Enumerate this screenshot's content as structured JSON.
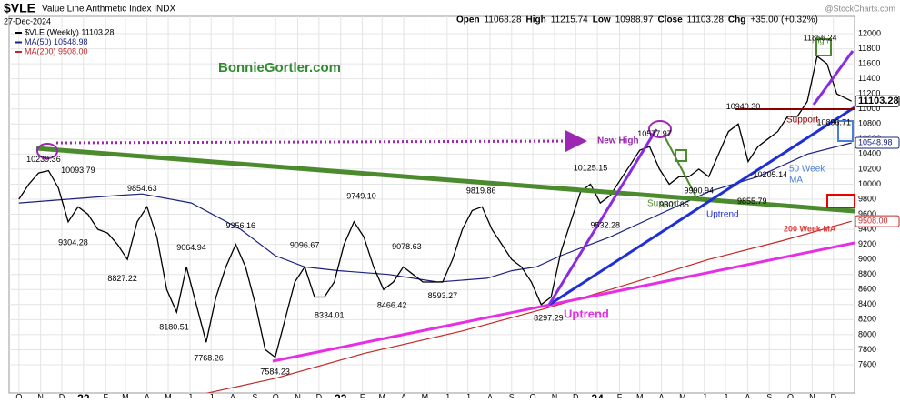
{
  "chart_data": {
    "type": "line",
    "symbol": "$VLE",
    "name": "Value Line Arithmetic Index INDX",
    "date": "27-Dec-2024",
    "watermark": "@StockCharts.com",
    "quote": [
      {
        "label": "Open",
        "value": 11068.28
      },
      {
        "label": "High",
        "value": 11215.74
      },
      {
        "label": "Low",
        "value": 10988.97
      },
      {
        "label": "Close",
        "value": 11103.28
      }
    ],
    "change_label": "Chg",
    "change": "+35.00 (+0.32%)",
    "x": [
      0,
      2,
      4,
      6,
      8,
      10,
      12,
      14,
      16,
      18,
      20,
      22,
      24,
      26,
      28,
      30,
      32,
      34,
      36,
      38,
      40,
      42,
      44,
      46,
      48,
      50,
      52,
      54,
      56,
      58,
      60,
      62,
      64,
      66,
      68,
      70,
      72,
      74,
      76,
      78,
      80,
      82,
      84,
      86,
      88,
      90,
      92,
      94,
      96,
      98,
      100,
      102,
      104,
      106,
      108,
      110,
      112,
      114,
      116,
      118,
      120,
      122,
      124,
      126,
      128,
      130,
      132,
      134,
      136,
      138,
      140,
      142,
      144,
      146,
      148,
      150,
      152,
      154,
      156,
      158,
      160,
      162,
      164,
      166,
      169
    ],
    "series": [
      {
        "name": "$VLE (Weekly) 11103.28",
        "color": "#000000",
        "values": [
          9800,
          10000,
          10150,
          10180,
          9950,
          9500,
          9700,
          9600,
          9400,
          9350,
          9200,
          9000,
          9500,
          9700,
          9300,
          8600,
          8300,
          8900,
          8400,
          7900,
          8500,
          8900,
          9200,
          8900,
          8400,
          7800,
          7700,
          8200,
          8700,
          8900,
          8500,
          8500,
          8700,
          9200,
          9500,
          9300,
          8900,
          8600,
          8700,
          8900,
          8800,
          8700,
          8700,
          8700,
          9000,
          9400,
          9650,
          9700,
          9400,
          9200,
          9000,
          8900,
          8700,
          8400,
          8500,
          9100,
          9500,
          9900,
          10000,
          9750,
          9850,
          10050,
          10250,
          10450,
          10500,
          10200,
          10000,
          10100,
          10100,
          10200,
          10100,
          10400,
          10700,
          10800,
          10300,
          10500,
          10600,
          10700,
          10900,
          10900,
          11100,
          11700,
          11600,
          11200,
          11103.28
        ]
      }
    ],
    "ma": [
      {
        "name": "MA(50) 10548.98",
        "color": "#1a237e",
        "x": [
          0,
          10,
          20,
          25,
          35,
          45,
          52,
          58,
          65,
          75,
          85,
          95,
          100,
          105,
          110,
          120,
          130,
          140,
          150,
          160,
          169
        ],
        "values": [
          9750,
          9800,
          9850,
          9870,
          9750,
          9400,
          9050,
          8900,
          8850,
          8800,
          8700,
          8750,
          8850,
          8900,
          9050,
          9300,
          9600,
          9900,
          10100,
          10400,
          10548.98
        ]
      },
      {
        "name": "MA(200) 9508.00",
        "color": "#c62828",
        "x": [
          38,
          52,
          70,
          90,
          107,
          120,
          140,
          155,
          169
        ],
        "values": [
          7220,
          7420,
          7750,
          8050,
          8350,
          8600,
          9000,
          9250,
          9508
        ]
      }
    ],
    "price_boxes": [
      {
        "value": 11103.28,
        "label": "11103.28",
        "color": "#000000"
      },
      {
        "value": 10548.98,
        "label": "10548.98",
        "color": "#1a237e"
      },
      {
        "value": 9508,
        "label": "9508.00",
        "color": "#c62828"
      }
    ],
    "annotations": [
      {
        "x": 5,
        "value": 10239.36,
        "label": "10239.36"
      },
      {
        "x": 12,
        "value": 10093.79,
        "label": "10093.79"
      },
      {
        "x": 11,
        "value": 9304.28,
        "label": "9304.28"
      },
      {
        "x": 25,
        "value": 9854.63,
        "label": "9854.63"
      },
      {
        "x": 21,
        "value": 8827.22,
        "label": "8827.22"
      },
      {
        "x": 31.5,
        "value": 8180.51,
        "label": "8180.51"
      },
      {
        "x": 35,
        "value": 9064.94,
        "label": "9064.94"
      },
      {
        "x": 38.5,
        "value": 7768.26,
        "label": "7768.26"
      },
      {
        "x": 45,
        "value": 9356.16,
        "label": "9356.16"
      },
      {
        "x": 52,
        "value": 7584.23,
        "label": "7584.23"
      },
      {
        "x": 58,
        "value": 9096.67,
        "label": "9096.67"
      },
      {
        "x": 63,
        "value": 8334.01,
        "label": "8334.01"
      },
      {
        "x": 69.5,
        "value": 9749.1,
        "label": "9749.10"
      },
      {
        "x": 78.7,
        "value": 9078.63,
        "label": "9078.63"
      },
      {
        "x": 75.7,
        "value": 8466.42,
        "label": "8466.42"
      },
      {
        "x": 86,
        "value": 8593.27,
        "label": "8593.27"
      },
      {
        "x": 93.8,
        "value": 9819.86,
        "label": "9819.86"
      },
      {
        "x": 107.5,
        "value": 8297.29,
        "label": "8297.29"
      },
      {
        "x": 116,
        "value": 10125.15,
        "label": "10125.15"
      },
      {
        "x": 119,
        "value": 9532.28,
        "label": "9532.28"
      },
      {
        "x": 129,
        "value": 10577.97,
        "label": "10577.97"
      },
      {
        "x": 133,
        "value": 9801.85,
        "label": "9801.85"
      },
      {
        "x": 138,
        "value": 9990.94,
        "label": "9990.94"
      },
      {
        "x": 147,
        "value": 10940.3,
        "label": "10940.30"
      },
      {
        "x": 148.8,
        "value": 9855.79,
        "label": "9855.79"
      },
      {
        "x": 152.5,
        "value": 10205.14,
        "label": "10205.14"
      },
      {
        "x": 162.6,
        "value": 11856.24,
        "label": "11856.24"
      },
      {
        "x": 165.4,
        "value": 10896.71,
        "label": "10896.71"
      }
    ],
    "notes": {
      "site": "BonnieGortler.com",
      "new_high": "New High",
      "support1": "Support",
      "uptrend1": "Uptrend",
      "uptrend2": "Uptrend",
      "support2": "Support",
      "ma50a": "50 Week",
      "ma50b": "MA",
      "ma200": "200 Week MA",
      "high": "High"
    },
    "xlim": [
      -2,
      169.6
    ],
    "xticks": [
      {
        "value": 0,
        "label": "O"
      },
      {
        "value": 4.4,
        "label": "N"
      },
      {
        "value": 8.7,
        "label": "D"
      },
      {
        "value": 13.1,
        "label": "22"
      },
      {
        "value": 17.6,
        "label": "F"
      },
      {
        "value": 21.6,
        "label": "M"
      },
      {
        "value": 26,
        "label": "A"
      },
      {
        "value": 30.3,
        "label": "M"
      },
      {
        "value": 34.7,
        "label": "J"
      },
      {
        "value": 39,
        "label": "J"
      },
      {
        "value": 43.4,
        "label": "A"
      },
      {
        "value": 47.9,
        "label": "S"
      },
      {
        "value": 52.1,
        "label": "O"
      },
      {
        "value": 56.6,
        "label": "N"
      },
      {
        "value": 60.9,
        "label": "D"
      },
      {
        "value": 65.3,
        "label": "23"
      },
      {
        "value": 69.7,
        "label": "F"
      },
      {
        "value": 73.7,
        "label": "M"
      },
      {
        "value": 78.1,
        "label": "A"
      },
      {
        "value": 82.4,
        "label": "M"
      },
      {
        "value": 86.9,
        "label": "J"
      },
      {
        "value": 91.1,
        "label": "J"
      },
      {
        "value": 95.6,
        "label": "A"
      },
      {
        "value": 100,
        "label": "S"
      },
      {
        "value": 104.3,
        "label": "O"
      },
      {
        "value": 108.7,
        "label": "N"
      },
      {
        "value": 113,
        "label": "D"
      },
      {
        "value": 117.4,
        "label": "24"
      },
      {
        "value": 121.9,
        "label": "F"
      },
      {
        "value": 126,
        "label": "M"
      },
      {
        "value": 130.4,
        "label": "A"
      },
      {
        "value": 134.7,
        "label": "M"
      },
      {
        "value": 139.1,
        "label": "J"
      },
      {
        "value": 143.4,
        "label": "J"
      },
      {
        "value": 147.9,
        "label": "A"
      },
      {
        "value": 152.3,
        "label": "S"
      },
      {
        "value": 156.6,
        "label": "O"
      },
      {
        "value": 161,
        "label": "N"
      },
      {
        "value": 165.3,
        "label": "D"
      }
    ],
    "ylim": [
      7225,
      12230
    ],
    "yticks": [
      7600,
      7800,
      8000,
      8200,
      8400,
      8600,
      8800,
      9000,
      9200,
      9400,
      9600,
      9800,
      10000,
      10200,
      10400,
      10600,
      10800,
      11000,
      11200,
      11400,
      11600,
      11800,
      12000
    ],
    "grid": true
  }
}
